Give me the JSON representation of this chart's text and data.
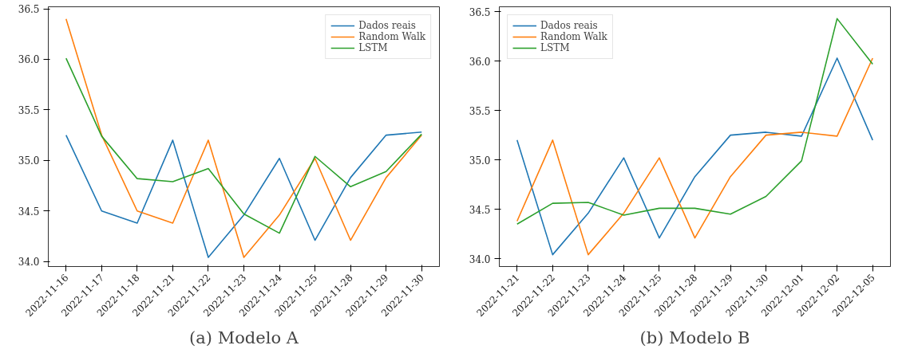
{
  "chart_data": [
    {
      "type": "line",
      "title": "(a) Modelo A",
      "categories": [
        "2022-11-16",
        "2022-11-17",
        "2022-11-18",
        "2022-11-21",
        "2022-11-22",
        "2022-11-23",
        "2022-11-24",
        "2022-11-25",
        "2022-11-28",
        "2022-11-29",
        "2022-11-30"
      ],
      "series": [
        {
          "name": "Dados reais",
          "color": "#1f77b4",
          "values": [
            35.25,
            34.5,
            34.38,
            35.2,
            34.04,
            34.46,
            35.02,
            34.21,
            34.83,
            35.25,
            35.28
          ]
        },
        {
          "name": "Random Walk",
          "color": "#ff7f0e",
          "values": [
            36.4,
            35.25,
            34.5,
            34.38,
            35.2,
            34.04,
            34.46,
            35.02,
            34.21,
            34.83,
            35.25
          ]
        },
        {
          "name": "LSTM",
          "color": "#2ca02c",
          "values": [
            36.01,
            35.24,
            34.82,
            34.79,
            34.92,
            34.47,
            34.28,
            35.04,
            34.74,
            34.89,
            35.26
          ]
        }
      ],
      "ylim": [
        33.95,
        36.52
      ],
      "yticks": [
        {
          "value": 34,
          "label": "34.0"
        },
        34.5,
        {
          "value": 35,
          "label": "35.0"
        },
        35.5,
        {
          "value": 36,
          "label": "36.0"
        },
        36.5
      ],
      "legend": "top right",
      "grid": false,
      "marker": "none",
      "line_style": "solid"
    },
    {
      "type": "line",
      "title": "(b) Modelo B",
      "categories": [
        "2022-11-21",
        "2022-11-22",
        "2022-11-23",
        "2022-11-24",
        "2022-11-25",
        "2022-11-28",
        "2022-11-29",
        "2022-11-30",
        "2022-12-01",
        "2022-12-02",
        "2022-12-05"
      ],
      "series": [
        {
          "name": "Dados reais",
          "color": "#1f77b4",
          "values": [
            35.2,
            34.04,
            34.46,
            35.02,
            34.21,
            34.83,
            35.25,
            35.28,
            35.24,
            36.03,
            35.2
          ]
        },
        {
          "name": "Random Walk",
          "color": "#ff7f0e",
          "values": [
            34.38,
            35.2,
            34.04,
            34.46,
            35.02,
            34.21,
            34.83,
            35.25,
            35.28,
            35.24,
            36.03
          ]
        },
        {
          "name": "LSTM",
          "color": "#2ca02c",
          "values": [
            34.35,
            34.56,
            34.57,
            34.44,
            34.51,
            34.51,
            34.45,
            34.63,
            34.99,
            36.43,
            35.97
          ]
        }
      ],
      "ylim": [
        33.92,
        36.55
      ],
      "yticks": [
        {
          "value": 34,
          "label": "34.0"
        },
        34.5,
        {
          "value": 35,
          "label": "35.0"
        },
        35.5,
        {
          "value": 36,
          "label": "36.0"
        },
        36.5
      ],
      "legend": "top left",
      "grid": false,
      "marker": "none",
      "line_style": "solid"
    }
  ]
}
